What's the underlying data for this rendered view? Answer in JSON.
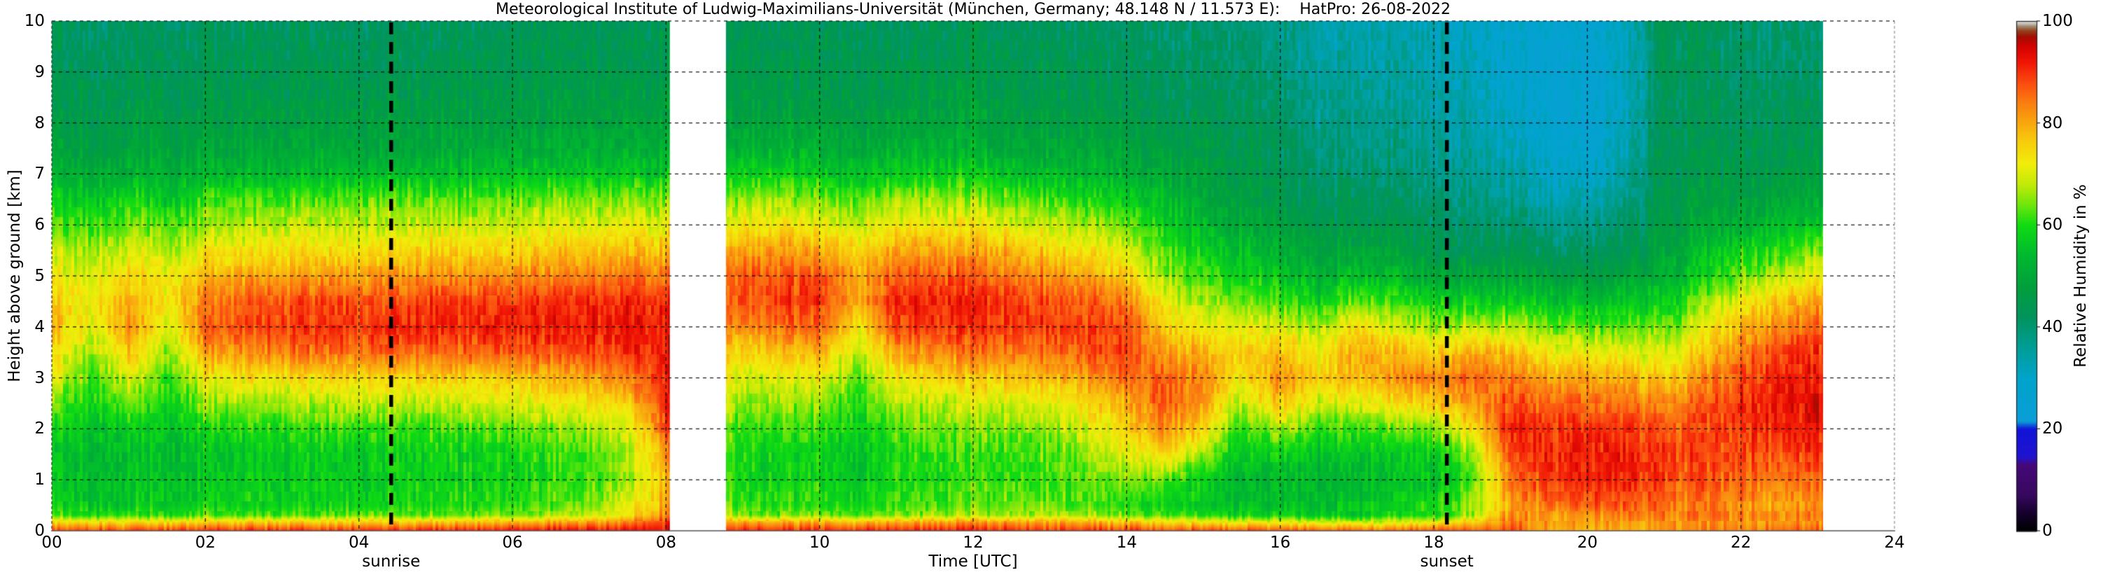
{
  "title": "Meteorological Institute of Ludwig-Maximilians-Universität (München, Germany; 48.148 N / 11.573 E):    HatPro: 26-08-2022",
  "axes": {
    "x": {
      "label": "Time [UTC]",
      "range": [
        0,
        24
      ],
      "tick_step_hours": 2,
      "tick_labels": [
        "00",
        "02",
        "04",
        "06",
        "08",
        "10",
        "12",
        "14",
        "16",
        "18",
        "20",
        "22",
        "24"
      ]
    },
    "y": {
      "label": "Height above ground [km]",
      "range": [
        0,
        10
      ],
      "tick_labels": [
        "0",
        "1",
        "2",
        "3",
        "4",
        "5",
        "6",
        "7",
        "8",
        "9",
        "10"
      ]
    }
  },
  "colorbar": {
    "label": "Relative Humidity in %",
    "range": [
      0,
      100
    ],
    "tick_values": [
      0,
      20,
      40,
      60,
      80,
      100
    ],
    "tick_labels": [
      "0",
      "20",
      "40",
      "60",
      "80",
      "100"
    ]
  },
  "annotations": {
    "sunrise": {
      "label": "sunrise",
      "time": 4.42
    },
    "sunset": {
      "label": "sunset",
      "time": 18.17
    }
  },
  "chart_data": {
    "type": "heatmap",
    "title": "Relative humidity time-height cross section, HatPro microwave radiometer, 26-08-2022",
    "x_unit": "hours UTC",
    "y_unit": "km above ground",
    "value_unit": "percent relative humidity",
    "grid_on": true,
    "gaps": [
      [
        8.05,
        8.78
      ],
      [
        23.07,
        24.0
      ]
    ],
    "times": [
      0,
      0.5,
      1,
      1.5,
      2,
      2.5,
      3,
      3.5,
      4,
      4.5,
      5,
      5.5,
      6,
      6.5,
      7,
      7.5,
      8,
      9,
      9.5,
      10,
      10.5,
      11,
      11.5,
      12,
      12.5,
      13,
      13.5,
      14,
      14.5,
      15,
      15.5,
      16,
      16.5,
      17,
      17.5,
      18,
      18.5,
      19,
      19.5,
      20,
      20.5,
      21,
      21.5,
      22,
      22.5,
      23
    ],
    "heights": [
      0,
      0.15,
      0.3,
      0.5,
      1,
      1.5,
      2,
      2.5,
      3,
      3.5,
      4,
      4.5,
      5,
      5.5,
      6,
      6.5,
      7,
      7.5,
      8,
      8.5,
      9,
      9.5,
      10
    ],
    "values": [
      [
        88,
        76,
        62,
        58,
        56,
        55,
        58,
        64,
        70,
        74,
        78,
        76,
        72,
        68,
        62,
        58,
        52,
        48,
        46,
        45,
        44,
        43,
        42
      ],
      [
        88,
        75,
        60,
        56,
        55,
        54,
        56,
        59,
        62,
        66,
        70,
        72,
        70,
        66,
        61,
        56,
        51,
        47,
        45,
        44,
        43,
        42,
        41
      ],
      [
        89,
        76,
        62,
        57,
        56,
        55,
        58,
        63,
        70,
        77,
        82,
        80,
        75,
        70,
        65,
        60,
        53,
        49,
        47,
        45,
        44,
        43,
        42
      ],
      [
        89,
        75,
        60,
        56,
        55,
        54,
        56,
        58,
        61,
        65,
        70,
        73,
        72,
        67,
        62,
        56,
        52,
        48,
        46,
        44,
        43,
        42,
        41
      ],
      [
        90,
        77,
        62,
        58,
        56,
        56,
        59,
        65,
        72,
        80,
        86,
        84,
        78,
        72,
        66,
        61,
        53,
        49,
        47,
        45,
        44,
        43,
        42
      ],
      [
        90,
        77,
        62,
        58,
        57,
        56,
        60,
        66,
        73,
        82,
        88,
        86,
        80,
        73,
        67,
        62,
        54,
        49,
        47,
        45,
        44,
        43,
        42
      ],
      [
        90,
        77,
        62,
        58,
        57,
        57,
        60,
        67,
        74,
        84,
        89,
        87,
        80,
        74,
        68,
        62,
        54,
        50,
        47,
        45,
        44,
        43,
        42
      ],
      [
        90,
        77,
        62,
        58,
        57,
        57,
        61,
        67,
        75,
        85,
        90,
        88,
        81,
        74,
        68,
        62,
        54,
        50,
        47,
        45,
        44,
        43,
        42
      ],
      [
        91,
        78,
        63,
        59,
        57,
        57,
        61,
        68,
        75,
        85,
        90,
        88,
        81,
        74,
        68,
        63,
        55,
        50,
        48,
        46,
        44,
        43,
        42
      ],
      [
        91,
        78,
        63,
        59,
        58,
        58,
        61,
        68,
        76,
        86,
        91,
        88,
        82,
        75,
        68,
        63,
        55,
        50,
        48,
        46,
        44,
        43,
        42
      ],
      [
        91,
        78,
        63,
        59,
        58,
        58,
        62,
        68,
        76,
        86,
        91,
        89,
        82,
        75,
        69,
        63,
        55,
        50,
        48,
        46,
        45,
        43,
        42
      ],
      [
        91,
        79,
        64,
        60,
        58,
        58,
        62,
        69,
        76,
        86,
        91,
        89,
        82,
        75,
        69,
        63,
        55,
        51,
        48,
        46,
        45,
        44,
        42
      ],
      [
        92,
        79,
        64,
        60,
        59,
        59,
        63,
        70,
        77,
        87,
        92,
        89,
        83,
        76,
        69,
        64,
        56,
        51,
        48,
        46,
        45,
        44,
        43
      ],
      [
        92,
        80,
        66,
        62,
        60,
        60,
        64,
        72,
        78,
        87,
        92,
        90,
        83,
        76,
        70,
        64,
        56,
        51,
        49,
        46,
        45,
        44,
        43
      ],
      [
        92,
        81,
        68,
        64,
        62,
        62,
        66,
        73,
        80,
        88,
        92,
        90,
        84,
        77,
        70,
        64,
        56,
        51,
        49,
        47,
        45,
        44,
        43
      ],
      [
        93,
        84,
        72,
        70,
        66,
        66,
        70,
        76,
        84,
        90,
        93,
        91,
        85,
        78,
        71,
        65,
        57,
        52,
        49,
        47,
        45,
        44,
        43
      ],
      [
        93,
        90,
        84,
        80,
        78,
        82,
        88,
        91,
        92,
        93,
        92,
        90,
        84,
        78,
        71,
        65,
        57,
        52,
        49,
        47,
        45,
        44,
        45
      ],
      [
        90,
        80,
        64,
        60,
        58,
        58,
        60,
        64,
        68,
        74,
        82,
        87,
        86,
        80,
        72,
        65,
        57,
        52,
        48,
        46,
        45,
        44,
        43
      ],
      [
        90,
        80,
        64,
        60,
        58,
        58,
        61,
        65,
        70,
        77,
        85,
        89,
        87,
        81,
        73,
        66,
        58,
        52,
        48,
        46,
        45,
        44,
        43
      ],
      [
        91,
        81,
        65,
        61,
        59,
        59,
        62,
        66,
        72,
        79,
        87,
        90,
        87,
        80,
        72,
        65,
        57,
        52,
        49,
        46,
        45,
        44,
        43
      ],
      [
        90,
        78,
        62,
        58,
        56,
        55,
        57,
        60,
        63,
        67,
        73,
        79,
        80,
        75,
        68,
        62,
        55,
        50,
        47,
        45,
        44,
        43,
        42
      ],
      [
        91,
        81,
        65,
        62,
        60,
        60,
        63,
        67,
        73,
        81,
        89,
        91,
        87,
        80,
        73,
        66,
        57,
        52,
        49,
        46,
        45,
        44,
        43
      ],
      [
        91,
        81,
        66,
        62,
        60,
        61,
        64,
        68,
        75,
        83,
        90,
        91,
        87,
        81,
        73,
        66,
        58,
        52,
        49,
        47,
        45,
        44,
        43
      ],
      [
        91,
        82,
        66,
        63,
        61,
        61,
        64,
        69,
        76,
        84,
        90,
        91,
        86,
        80,
        72,
        65,
        57,
        52,
        49,
        47,
        45,
        44,
        43
      ],
      [
        91,
        82,
        67,
        64,
        62,
        62,
        65,
        70,
        77,
        85,
        90,
        90,
        85,
        79,
        71,
        64,
        56,
        51,
        48,
        46,
        45,
        44,
        43
      ],
      [
        90,
        82,
        67,
        64,
        62,
        63,
        66,
        71,
        79,
        86,
        90,
        88,
        83,
        76,
        69,
        62,
        55,
        50,
        48,
        46,
        45,
        44,
        43
      ],
      [
        90,
        80,
        66,
        62,
        63,
        66,
        70,
        75,
        81,
        87,
        89,
        86,
        80,
        73,
        66,
        60,
        54,
        50,
        47,
        45,
        44,
        43,
        42
      ],
      [
        89,
        78,
        64,
        60,
        64,
        70,
        75,
        79,
        85,
        88,
        88,
        84,
        76,
        70,
        64,
        58,
        52,
        48,
        46,
        44,
        43,
        42,
        41
      ],
      [
        88,
        76,
        62,
        58,
        63,
        75,
        83,
        88,
        86,
        82,
        76,
        72,
        66,
        62,
        58,
        54,
        50,
        47,
        45,
        43,
        42,
        41,
        40
      ],
      [
        88,
        74,
        60,
        56,
        58,
        66,
        75,
        81,
        83,
        78,
        72,
        66,
        62,
        58,
        54,
        50,
        48,
        46,
        44,
        43,
        42,
        41,
        40
      ],
      [
        87,
        72,
        58,
        54,
        52,
        56,
        60,
        67,
        73,
        75,
        70,
        64,
        58,
        54,
        50,
        47,
        45,
        44,
        43,
        42,
        41,
        40,
        39
      ],
      [
        87,
        72,
        58,
        55,
        54,
        58,
        67,
        77,
        83,
        78,
        70,
        62,
        56,
        52,
        48,
        45,
        43,
        42,
        41,
        40,
        39,
        38,
        37
      ],
      [
        86,
        70,
        56,
        54,
        52,
        55,
        61,
        69,
        75,
        72,
        66,
        58,
        52,
        48,
        44,
        42,
        40,
        38,
        37,
        36,
        35,
        34,
        33
      ],
      [
        86,
        70,
        57,
        56,
        54,
        56,
        62,
        71,
        79,
        80,
        74,
        64,
        56,
        50,
        46,
        43,
        41,
        39,
        38,
        37,
        36,
        35,
        34
      ],
      [
        86,
        71,
        58,
        58,
        55,
        57,
        64,
        74,
        82,
        78,
        70,
        62,
        54,
        48,
        44,
        42,
        40,
        38,
        37,
        36,
        35,
        34,
        33
      ],
      [
        87,
        72,
        60,
        60,
        56,
        58,
        66,
        77,
        84,
        76,
        66,
        58,
        50,
        45,
        42,
        40,
        38,
        37,
        36,
        35,
        34,
        34,
        33
      ],
      [
        88,
        78,
        66,
        66,
        62,
        66,
        74,
        82,
        86,
        80,
        68,
        58,
        50,
        44,
        41,
        39,
        37,
        36,
        35,
        34,
        33,
        32,
        31
      ],
      [
        88,
        84,
        82,
        80,
        84,
        88,
        90,
        88,
        84,
        78,
        68,
        58,
        50,
        44,
        40,
        37,
        34,
        32,
        30,
        29,
        28,
        28,
        29
      ],
      [
        80,
        81,
        82,
        86,
        90,
        91,
        90,
        86,
        80,
        72,
        64,
        56,
        48,
        42,
        38,
        34,
        31,
        29,
        28,
        27,
        27,
        27,
        28
      ],
      [
        78,
        80,
        82,
        87,
        91,
        92,
        90,
        86,
        80,
        72,
        63,
        55,
        47,
        41,
        37,
        33,
        30,
        28,
        27,
        27,
        27,
        27,
        28
      ],
      [
        80,
        81,
        83,
        86,
        90,
        91,
        89,
        84,
        78,
        70,
        62,
        55,
        48,
        43,
        40,
        37,
        34,
        32,
        31,
        30,
        30,
        30,
        31
      ],
      [
        82,
        82,
        84,
        85,
        88,
        89,
        87,
        82,
        76,
        70,
        63,
        57,
        52,
        48,
        46,
        45,
        44,
        44,
        43,
        43,
        43,
        43,
        44
      ],
      [
        83,
        82,
        84,
        84,
        87,
        88,
        88,
        86,
        82,
        76,
        70,
        64,
        58,
        54,
        50,
        47,
        45,
        44,
        43,
        43,
        42,
        42,
        43
      ],
      [
        84,
        82,
        83,
        82,
        86,
        88,
        90,
        90,
        88,
        84,
        78,
        72,
        64,
        58,
        52,
        48,
        46,
        44,
        43,
        42,
        41,
        41,
        41
      ],
      [
        85,
        81,
        82,
        80,
        84,
        88,
        91,
        92,
        91,
        88,
        83,
        76,
        68,
        60,
        54,
        49,
        46,
        44,
        43,
        42,
        41,
        40,
        40
      ],
      [
        86,
        82,
        84,
        82,
        85,
        89,
        92,
        93,
        92,
        90,
        86,
        80,
        72,
        64,
        56,
        50,
        47,
        45,
        43,
        42,
        41,
        40,
        39
      ]
    ],
    "colormap_stops": [
      [
        0,
        "#000000"
      ],
      [
        3,
        "#120026"
      ],
      [
        7,
        "#37095e"
      ],
      [
        13,
        "#46087a"
      ],
      [
        14.5,
        "#2014cf"
      ],
      [
        20,
        "#1113d8"
      ],
      [
        21.5,
        "#0b9ed8"
      ],
      [
        30,
        "#00a4cb"
      ],
      [
        36,
        "#009e97"
      ],
      [
        42,
        "#00945c"
      ],
      [
        48,
        "#00a03c"
      ],
      [
        54,
        "#00b930"
      ],
      [
        60,
        "#10dc12"
      ],
      [
        64,
        "#70e60c"
      ],
      [
        68,
        "#c3ea08"
      ],
      [
        72,
        "#f1ee0a"
      ],
      [
        76,
        "#f7d00c"
      ],
      [
        80,
        "#f9a90e"
      ],
      [
        84,
        "#fa7e11"
      ],
      [
        88,
        "#fa4b10"
      ],
      [
        92,
        "#f01505"
      ],
      [
        95,
        "#d50300"
      ],
      [
        97,
        "#a30d04"
      ],
      [
        98.2,
        "#96451f"
      ],
      [
        99,
        "#9f8c71"
      ],
      [
        99.6,
        "#c9c4bd"
      ],
      [
        100,
        "#dad6d1"
      ]
    ],
    "render_hints": {
      "noise_seed": 7,
      "col_noise": 2.2,
      "cell_noise": 2.8
    }
  }
}
